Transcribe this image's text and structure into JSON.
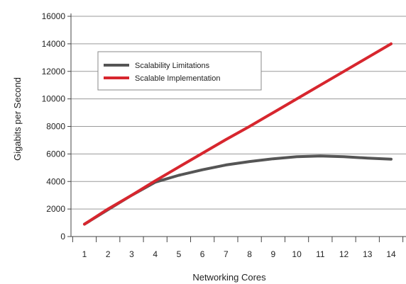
{
  "chart_data": {
    "type": "line",
    "xlabel": "Networking Cores",
    "ylabel": "Gigabits per Second",
    "x": [
      1,
      2,
      3,
      4,
      5,
      6,
      7,
      8,
      9,
      10,
      11,
      12,
      13,
      14
    ],
    "xlim": [
      1,
      14
    ],
    "ylim": [
      0,
      16000
    ],
    "y_ticks": [
      0,
      2000,
      4000,
      6000,
      8000,
      10000,
      12000,
      14000,
      16000
    ],
    "x_tick_labels": [
      "1",
      "2",
      "3",
      "4",
      "5",
      "6",
      "7",
      "8",
      "9",
      "10",
      "11",
      "12",
      "13",
      "14"
    ],
    "grid": "horizontal",
    "legend_position": "top-left",
    "series": [
      {
        "name": "Scalability Limitations",
        "color": "#555555",
        "values": [
          900,
          1950,
          3000,
          3950,
          4450,
          4850,
          5200,
          5450,
          5650,
          5800,
          5850,
          5800,
          5700,
          5620
        ]
      },
      {
        "name": "Scalable Implementation",
        "color": "#d7262e",
        "values": [
          900,
          2000,
          3000,
          4050,
          5050,
          6050,
          7050,
          8000,
          9000,
          10000,
          11000,
          12000,
          13000,
          14000
        ]
      }
    ]
  }
}
